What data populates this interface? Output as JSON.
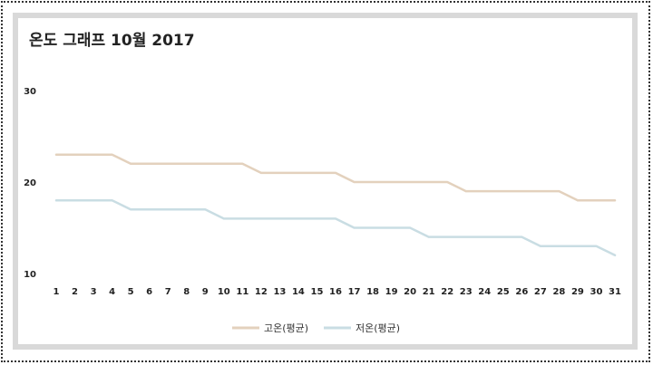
{
  "chart_data": {
    "type": "line",
    "title": "온도 그래프 10월 2017",
    "xlabel": "",
    "ylabel": "",
    "x": [
      1,
      2,
      3,
      4,
      5,
      6,
      7,
      8,
      9,
      10,
      11,
      12,
      13,
      14,
      15,
      16,
      17,
      18,
      19,
      20,
      21,
      22,
      23,
      24,
      25,
      26,
      27,
      28,
      29,
      30,
      31
    ],
    "ylim": [
      10,
      30
    ],
    "yticks": [
      10,
      20,
      30
    ],
    "grid": false,
    "legend": "bottom",
    "series": [
      {
        "name": "고온(평균)",
        "color": "#e3d1bd",
        "values": [
          23,
          23,
          23,
          23,
          22,
          22,
          22,
          22,
          22,
          22,
          22,
          21,
          21,
          21,
          21,
          21,
          20,
          20,
          20,
          20,
          20,
          20,
          19,
          19,
          19,
          19,
          19,
          19,
          18,
          18,
          18
        ]
      },
      {
        "name": "저온(평균)",
        "color": "#c9dde3",
        "values": [
          18,
          18,
          18,
          18,
          17,
          17,
          17,
          17,
          17,
          16,
          16,
          16,
          16,
          16,
          16,
          16,
          15,
          15,
          15,
          15,
          14,
          14,
          14,
          14,
          14,
          14,
          13,
          13,
          13,
          13,
          12
        ]
      }
    ]
  }
}
